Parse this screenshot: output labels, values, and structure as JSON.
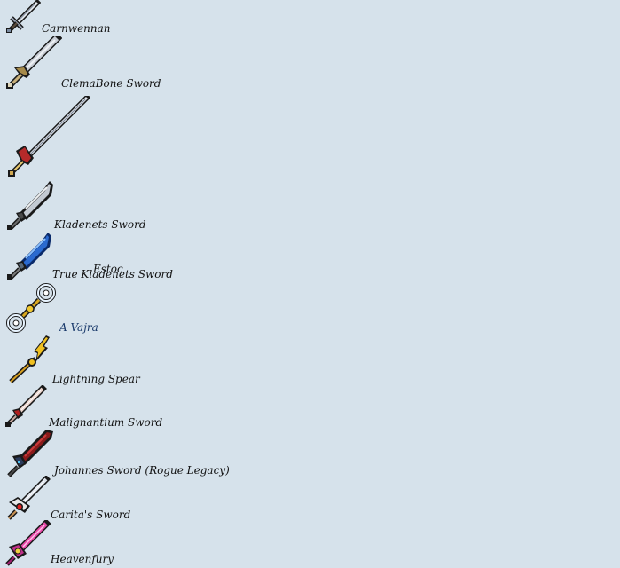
{
  "items": [
    {
      "label": "Carnwennan",
      "icon": "carnwennan-sword-icon"
    },
    {
      "label": "ClemaBone Sword",
      "icon": "clemabone-sword-icon"
    },
    {
      "label": "Estoc",
      "icon": "estoc-sword-icon"
    },
    {
      "label": "Kladenets Sword",
      "icon": "kladenets-sword-icon"
    },
    {
      "label": "True Kladenets Sword",
      "icon": "true-kladenets-sword-icon"
    },
    {
      "label": "A Vajra",
      "icon": "vajra-icon"
    },
    {
      "label": "Lightning Spear",
      "icon": "lightning-spear-icon"
    },
    {
      "label": "Malignantium Sword",
      "icon": "malignantium-sword-icon"
    },
    {
      "label": "Johannes Sword (Rogue Legacy)",
      "icon": "johannes-sword-icon"
    },
    {
      "label": "Carita's Sword",
      "icon": "caritas-sword-icon"
    },
    {
      "label": "Heavenfury",
      "icon": "heavenfury-sword-icon"
    }
  ],
  "colors": {
    "background": "#d6e2eb",
    "text": "#111111",
    "link_text": "#1a3a6b"
  }
}
